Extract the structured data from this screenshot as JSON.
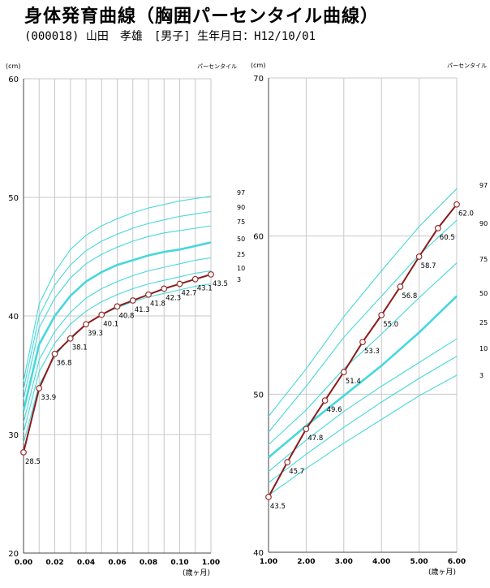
{
  "header": {
    "title": "身体発育曲線（胸囲パーセンタイル曲線）",
    "subtitle": "(000018) 山田　孝雄　[男子] 生年月日：H12/10/01"
  },
  "chart_data": [
    {
      "type": "line",
      "unit_label": "(cm)",
      "legend_label": "パーセンタイル",
      "xlabel": "(歳ヶ月)",
      "xlim": [
        0.0,
        1.0
      ],
      "ylim": [
        20,
        60
      ],
      "x_ticks": [
        "0.00",
        "0.02",
        "0.04",
        "0.06",
        "0.08",
        "0.10",
        "1.00"
      ],
      "y_ticks": [
        "20",
        "30",
        "40",
        "50",
        "60"
      ],
      "percentile_labels": [
        "97",
        "90",
        "75",
        "50",
        "25",
        "10",
        "3"
      ],
      "percentile_curves": [
        {
          "name": "97",
          "x": [
            0,
            0.01,
            0.02,
            0.03,
            0.04,
            0.05,
            0.06,
            0.07,
            0.08,
            0.09,
            0.1,
            0.11,
            0.12
          ],
          "y": [
            34.5,
            41.0,
            43.7,
            45.6,
            46.8,
            47.6,
            48.2,
            48.7,
            49.1,
            49.4,
            49.7,
            49.9,
            50.1
          ]
        },
        {
          "name": "90",
          "x": [
            0,
            0.01,
            0.02,
            0.03,
            0.04,
            0.05,
            0.06,
            0.07,
            0.08,
            0.09,
            0.1,
            0.11,
            0.12
          ],
          "y": [
            33.8,
            40.0,
            42.6,
            44.3,
            45.5,
            46.3,
            46.9,
            47.4,
            47.8,
            48.1,
            48.4,
            48.6,
            48.8
          ]
        },
        {
          "name": "75",
          "x": [
            0,
            0.01,
            0.02,
            0.03,
            0.04,
            0.05,
            0.06,
            0.07,
            0.08,
            0.09,
            0.1,
            0.11,
            0.12
          ],
          "y": [
            33.0,
            39.0,
            41.5,
            43.2,
            44.4,
            45.2,
            45.8,
            46.3,
            46.7,
            47.0,
            47.2,
            47.4,
            47.6
          ]
        },
        {
          "name": "50",
          "x": [
            0,
            0.01,
            0.02,
            0.03,
            0.04,
            0.05,
            0.06,
            0.07,
            0.08,
            0.09,
            0.1,
            0.11,
            0.12
          ],
          "y": [
            32.0,
            37.6,
            40.0,
            41.7,
            42.9,
            43.7,
            44.3,
            44.7,
            45.1,
            45.4,
            45.6,
            45.9,
            46.2
          ]
        },
        {
          "name": "25",
          "x": [
            0,
            0.01,
            0.02,
            0.03,
            0.04,
            0.05,
            0.06,
            0.07,
            0.08,
            0.09,
            0.1,
            0.11,
            0.12
          ],
          "y": [
            31.0,
            36.3,
            38.7,
            40.3,
            41.5,
            42.3,
            42.9,
            43.4,
            43.8,
            44.1,
            44.4,
            44.7,
            44.9
          ]
        },
        {
          "name": "10",
          "x": [
            0,
            0.01,
            0.02,
            0.03,
            0.04,
            0.05,
            0.06,
            0.07,
            0.08,
            0.09,
            0.1,
            0.11,
            0.12
          ],
          "y": [
            30.2,
            35.3,
            37.7,
            39.3,
            40.4,
            41.2,
            41.8,
            42.3,
            42.7,
            43.0,
            43.3,
            43.6,
            43.8
          ]
        },
        {
          "name": "3",
          "x": [
            0,
            0.01,
            0.02,
            0.03,
            0.04,
            0.05,
            0.06,
            0.07,
            0.08,
            0.09,
            0.1,
            0.11,
            0.12
          ],
          "y": [
            29.3,
            34.2,
            36.6,
            38.2,
            39.3,
            40.1,
            40.7,
            41.2,
            41.6,
            41.9,
            42.2,
            42.5,
            42.7
          ]
        }
      ],
      "series": [
        {
          "name": "",
          "x": [
            0,
            0.01,
            0.02,
            0.03,
            0.04,
            0.05,
            0.06,
            0.07,
            0.08,
            0.09,
            0.1,
            0.11,
            0.12
          ],
          "y": [
            28.5,
            33.9,
            36.8,
            38.1,
            39.3,
            40.1,
            40.8,
            41.3,
            41.8,
            42.3,
            42.7,
            43.1,
            43.5
          ],
          "labels": [
            "28.5",
            "33.9",
            "36.8",
            "38.1",
            "39.3",
            "40.1",
            "40.8",
            "41.3",
            "41.8",
            "42.3",
            "42.7",
            "43.1",
            "43.5"
          ]
        }
      ]
    },
    {
      "type": "line",
      "unit_label": "(cm)",
      "legend_label": "パーセンタイル",
      "xlabel": "(歳ヶ月)",
      "xlim": [
        1.0,
        6.0
      ],
      "ylim": [
        40,
        70
      ],
      "x_ticks": [
        "1.00",
        "2.00",
        "3.00",
        "4.00",
        "5.00",
        "6.00"
      ],
      "y_ticks": [
        "40",
        "50",
        "60",
        "70"
      ],
      "percentile_labels": [
        "97",
        "90",
        "75",
        "50",
        "25",
        "10",
        "3"
      ],
      "percentile_curves": [
        {
          "name": "97",
          "x": [
            1,
            2,
            3,
            4,
            5,
            6
          ],
          "y": [
            48.6,
            51.6,
            54.9,
            57.8,
            60.6,
            63.0
          ]
        },
        {
          "name": "90",
          "x": [
            1,
            2,
            3,
            4,
            5,
            6
          ],
          "y": [
            47.6,
            50.5,
            53.6,
            56.2,
            58.8,
            61.0
          ]
        },
        {
          "name": "75",
          "x": [
            1,
            2,
            3,
            4,
            5,
            6
          ],
          "y": [
            46.8,
            49.0,
            51.6,
            53.8,
            56.1,
            58.3
          ]
        },
        {
          "name": "50",
          "x": [
            1,
            2,
            3,
            4,
            5,
            6
          ],
          "y": [
            46.0,
            48.0,
            49.9,
            51.8,
            53.9,
            56.2
          ]
        },
        {
          "name": "25",
          "x": [
            1,
            2,
            3,
            4,
            5,
            6
          ],
          "y": [
            45.1,
            47.1,
            48.9,
            50.5,
            52.0,
            53.5
          ]
        },
        {
          "name": "10",
          "x": [
            1,
            2,
            3,
            4,
            5,
            6
          ],
          "y": [
            44.4,
            46.2,
            47.9,
            49.5,
            51.0,
            52.4
          ]
        },
        {
          "name": "3",
          "x": [
            1,
            2,
            3,
            4,
            5,
            6
          ],
          "y": [
            43.6,
            45.3,
            46.9,
            48.4,
            49.9,
            51.2
          ]
        }
      ],
      "series": [
        {
          "name": "",
          "x": [
            1.0,
            1.5,
            2.0,
            2.5,
            3.0,
            3.5,
            4.0,
            4.5,
            5.0,
            5.5,
            6.0
          ],
          "y": [
            43.5,
            45.7,
            47.8,
            49.6,
            51.4,
            53.3,
            55.0,
            56.8,
            58.7,
            60.5,
            62.0
          ],
          "labels": [
            "43.5",
            "45.7",
            "47.8",
            "49.6",
            "51.4",
            "53.3",
            "55.0",
            "56.8",
            "58.7",
            "60.5",
            "62.0"
          ]
        }
      ]
    }
  ]
}
